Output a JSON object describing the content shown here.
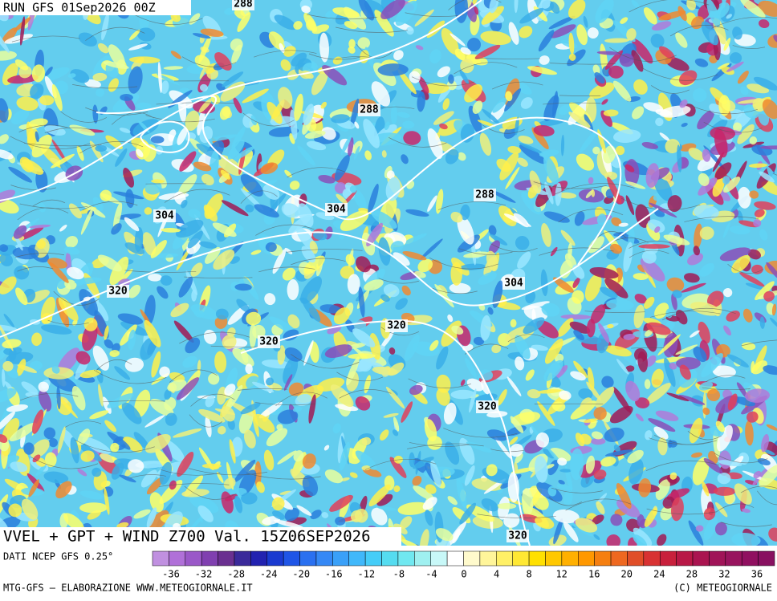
{
  "header": {
    "run": "RUN GFS 01Sep2026 00Z"
  },
  "map": {
    "contour_labels": [
      288,
      288,
      288,
      304,
      304,
      304,
      320,
      320,
      320,
      320,
      320
    ]
  },
  "title": "VVEL + GPT + WIND Z700 Val. 15Z06SEP2026",
  "source": "DATI NCEP GFS 0.25°",
  "colorbar": {
    "ticks": [
      -36,
      -32,
      -28,
      -24,
      -20,
      -16,
      -12,
      -8,
      -4,
      0,
      4,
      8,
      12,
      16,
      20,
      24,
      28,
      32,
      36
    ]
  },
  "footer": {
    "left": "MTG-GFS – ELABORAZIONE WWW.METEOGIORNALE.IT",
    "right": "(C) METEOGIORNALE"
  }
}
